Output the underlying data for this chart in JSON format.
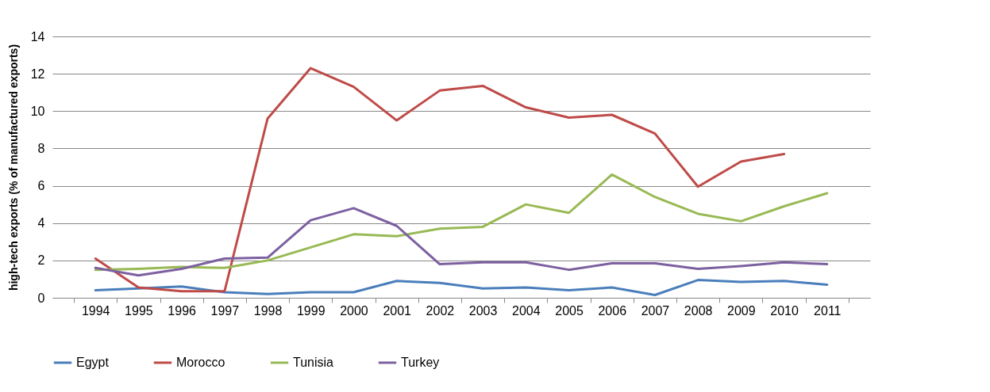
{
  "chart_data": {
    "type": "line",
    "ylabel": "high-tech exports (% of manufactured exports)",
    "categories": [
      "1994",
      "1995",
      "1996",
      "1997",
      "1998",
      "1999",
      "2000",
      "2001",
      "2002",
      "2003",
      "2004",
      "2005",
      "2006",
      "2007",
      "2008",
      "2009",
      "2010",
      "2011"
    ],
    "series": [
      {
        "name": "Egypt",
        "color": "#4a7ebb",
        "values": [
          0.4,
          0.5,
          0.6,
          0.3,
          0.2,
          0.3,
          0.3,
          0.9,
          0.8,
          0.5,
          0.55,
          0.4,
          0.55,
          0.15,
          0.95,
          0.85,
          0.9,
          0.7
        ]
      },
      {
        "name": "Morocco",
        "color": "#be4b48",
        "values": [
          2.1,
          0.55,
          0.35,
          0.35,
          9.6,
          12.3,
          11.3,
          9.5,
          11.1,
          11.35,
          10.2,
          9.65,
          9.8,
          8.8,
          5.95,
          7.3,
          7.7,
          null
        ]
      },
      {
        "name": "Tunisia",
        "color": "#98b954",
        "values": [
          1.5,
          1.55,
          1.65,
          1.6,
          2.0,
          2.7,
          3.4,
          3.3,
          3.7,
          3.8,
          5.0,
          4.55,
          6.6,
          5.4,
          4.5,
          4.1,
          4.9,
          5.6
        ]
      },
      {
        "name": "Turkey",
        "color": "#7d60a0",
        "values": [
          1.6,
          1.2,
          1.55,
          2.1,
          2.15,
          4.15,
          4.8,
          3.85,
          1.8,
          1.9,
          1.9,
          1.5,
          1.85,
          1.85,
          1.55,
          1.7,
          1.9,
          1.8
        ]
      }
    ],
    "ylim": [
      0,
      14
    ],
    "yticks": [
      0,
      2,
      4,
      6,
      8,
      10,
      12,
      14
    ],
    "grid": "y",
    "legend": "bottom",
    "marker": "none",
    "line_style": "solid"
  }
}
